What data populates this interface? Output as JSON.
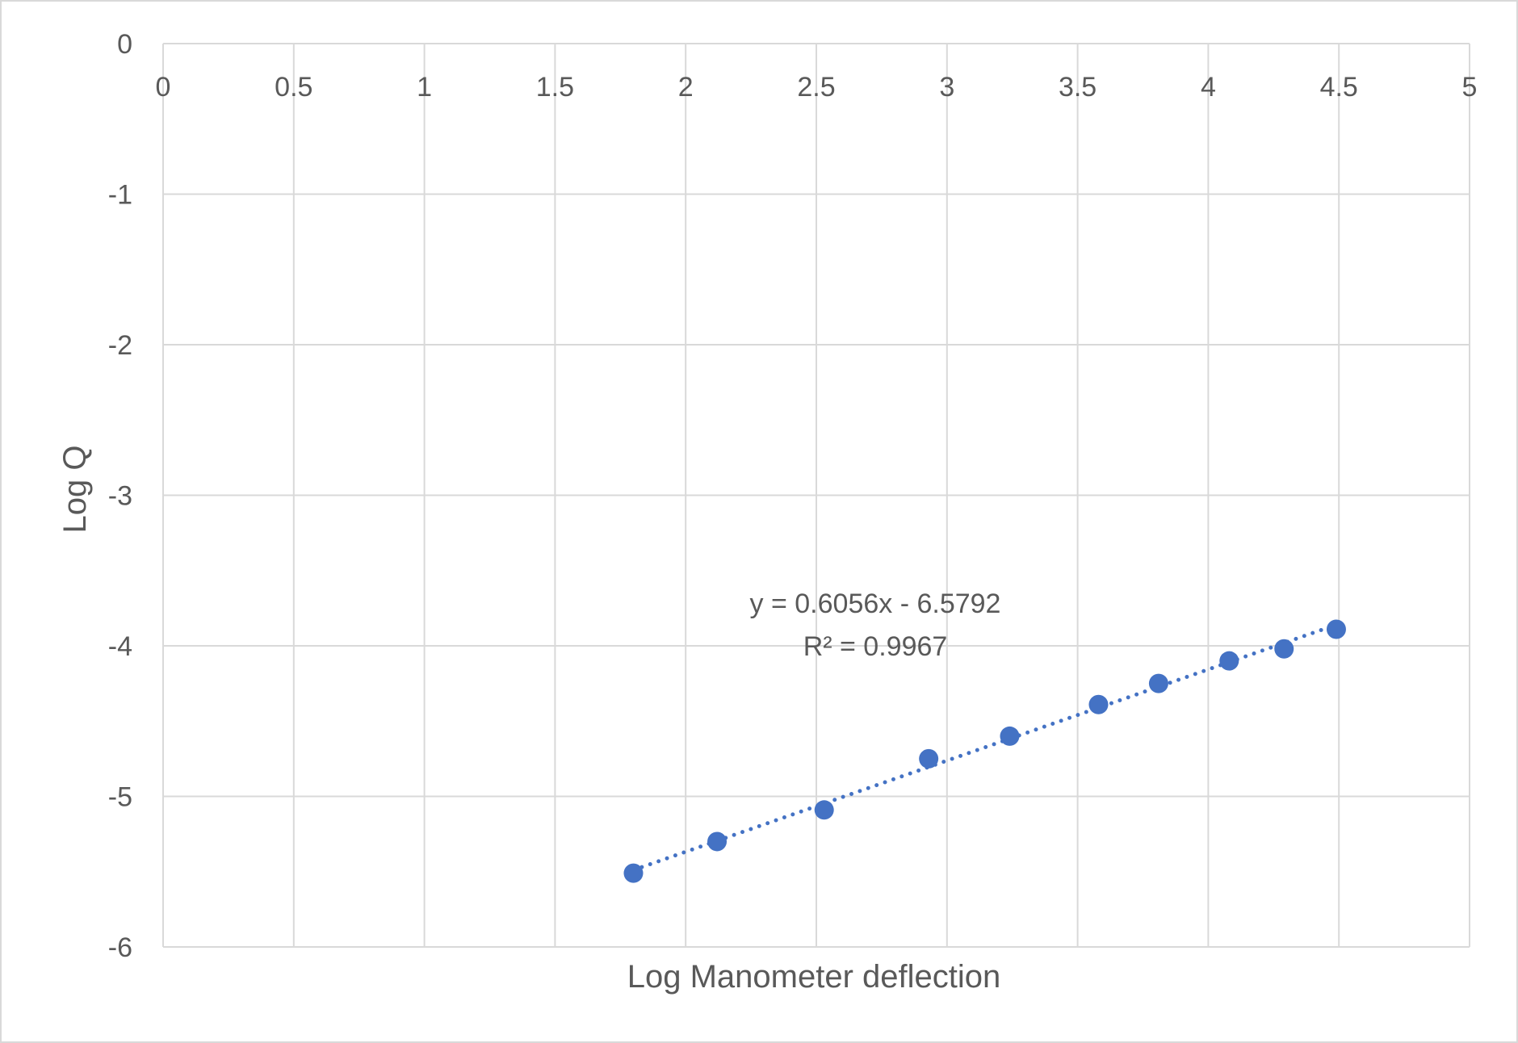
{
  "chart_data": {
    "type": "scatter",
    "title": "",
    "xlabel": "Log Manometer deflection",
    "ylabel": "Log Q",
    "xlim": [
      0,
      5
    ],
    "ylim": [
      -6,
      0
    ],
    "x_ticks": [
      "0",
      "0.5",
      "1",
      "1.5",
      "2",
      "2.5",
      "3",
      "3.5",
      "4",
      "4.5",
      "5"
    ],
    "y_ticks": [
      "0",
      "-1",
      "-2",
      "-3",
      "-4",
      "-5",
      "-6"
    ],
    "x_tick_position": "top",
    "grid": true,
    "legend": "none",
    "series": [
      {
        "color": "#4472c4",
        "x": [
          1.8,
          2.12,
          2.53,
          2.93,
          3.24,
          3.58,
          3.81,
          4.08,
          4.29,
          4.49
        ],
        "y": [
          -5.51,
          -5.3,
          -5.09,
          -4.75,
          -4.6,
          -4.39,
          -4.25,
          -4.1,
          -4.02,
          -3.89
        ]
      }
    ],
    "trendline": {
      "type": "linear",
      "style": "dotted",
      "color": "#4472c4",
      "slope": 0.6056,
      "intercept": -6.5792,
      "x_range": [
        1.8,
        4.49
      ],
      "equation_label": "y = 0.6056x - 6.5792",
      "r2_label": "R² = 0.9967"
    },
    "colors": {
      "grid": "#d9d9d9",
      "text": "#595959",
      "marker": "#4472c4"
    }
  }
}
